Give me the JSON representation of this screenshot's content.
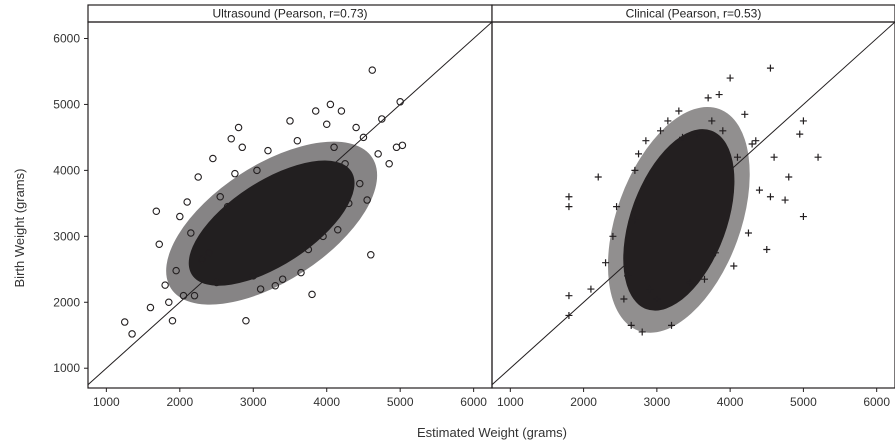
{
  "chart_data": {
    "type": "scatter",
    "xlabel": "Estimated Weight (grams)",
    "ylabel": "Birth Weight (grams)",
    "xlim": [
      750,
      6250
    ],
    "ylim": [
      700,
      6250
    ],
    "xticks": [
      1000,
      2000,
      3000,
      4000,
      5000,
      6000
    ],
    "yticks": [
      1000,
      2000,
      3000,
      4000,
      5000,
      6000
    ],
    "grid": false,
    "reference_line": "y = x",
    "panels": [
      {
        "title": "Ultrasound (Pearson, r=0.73)",
        "marker": "circle",
        "color": "#231f20",
        "points": [
          [
            1250,
            1700
          ],
          [
            1350,
            1520
          ],
          [
            1600,
            1920
          ],
          [
            1680,
            3380
          ],
          [
            1720,
            2880
          ],
          [
            1800,
            2260
          ],
          [
            1850,
            2000
          ],
          [
            1900,
            1720
          ],
          [
            1950,
            2480
          ],
          [
            2000,
            3300
          ],
          [
            2050,
            2100
          ],
          [
            2100,
            3520
          ],
          [
            2150,
            3050
          ],
          [
            2200,
            2100
          ],
          [
            2250,
            3900
          ],
          [
            2300,
            2650
          ],
          [
            2400,
            2750
          ],
          [
            2450,
            4180
          ],
          [
            2500,
            2300
          ],
          [
            2550,
            3600
          ],
          [
            2650,
            3450
          ],
          [
            2700,
            4480
          ],
          [
            2750,
            3950
          ],
          [
            2800,
            4650
          ],
          [
            2850,
            4350
          ],
          [
            2900,
            1720
          ],
          [
            3000,
            2400
          ],
          [
            3050,
            4000
          ],
          [
            3100,
            2200
          ],
          [
            3200,
            4300
          ],
          [
            3300,
            2250
          ],
          [
            3400,
            2350
          ],
          [
            3500,
            4750
          ],
          [
            3600,
            4450
          ],
          [
            3650,
            2450
          ],
          [
            3750,
            2800
          ],
          [
            3800,
            2120
          ],
          [
            3850,
            4900
          ],
          [
            3950,
            3000
          ],
          [
            4000,
            4700
          ],
          [
            4050,
            5000
          ],
          [
            4100,
            4350
          ],
          [
            4150,
            3100
          ],
          [
            4200,
            4900
          ],
          [
            4250,
            4100
          ],
          [
            4300,
            3500
          ],
          [
            4400,
            4650
          ],
          [
            4450,
            3800
          ],
          [
            4500,
            4500
          ],
          [
            4550,
            3550
          ],
          [
            4600,
            2720
          ],
          [
            4620,
            5520
          ],
          [
            4700,
            4250
          ],
          [
            4750,
            4780
          ],
          [
            4850,
            4100
          ],
          [
            4950,
            4350
          ],
          [
            5000,
            5040
          ],
          [
            5030,
            4380
          ]
        ]
      },
      {
        "title": "Clinical (Pearson, r=0.53)",
        "marker": "plus",
        "color": "#231f20",
        "points": [
          [
            1800,
            1800
          ],
          [
            1800,
            2100
          ],
          [
            1800,
            3450
          ],
          [
            1800,
            3600
          ],
          [
            2100,
            2200
          ],
          [
            2200,
            3900
          ],
          [
            2300,
            2600
          ],
          [
            2400,
            3000
          ],
          [
            2450,
            3450
          ],
          [
            2550,
            2050
          ],
          [
            2600,
            2400
          ],
          [
            2650,
            1650
          ],
          [
            2700,
            4000
          ],
          [
            2750,
            4250
          ],
          [
            2800,
            1550
          ],
          [
            2850,
            4450
          ],
          [
            2900,
            2200
          ],
          [
            3000,
            2050
          ],
          [
            3050,
            4600
          ],
          [
            3150,
            4750
          ],
          [
            3200,
            1650
          ],
          [
            3300,
            4900
          ],
          [
            3350,
            4500
          ],
          [
            3450,
            2300
          ],
          [
            3550,
            4550
          ],
          [
            3650,
            2350
          ],
          [
            3700,
            5100
          ],
          [
            3750,
            4750
          ],
          [
            3800,
            2750
          ],
          [
            3850,
            5150
          ],
          [
            3900,
            4600
          ],
          [
            4000,
            5400
          ],
          [
            4050,
            2550
          ],
          [
            4100,
            4200
          ],
          [
            4200,
            4850
          ],
          [
            4250,
            3050
          ],
          [
            4300,
            4400
          ],
          [
            4350,
            4450
          ],
          [
            4400,
            3700
          ],
          [
            4500,
            2800
          ],
          [
            4550,
            5550
          ],
          [
            4600,
            4200
          ],
          [
            4750,
            3550
          ],
          [
            4800,
            3900
          ],
          [
            4950,
            4550
          ],
          [
            5000,
            4750
          ],
          [
            5000,
            3300
          ],
          [
            5200,
            4200
          ],
          [
            4550,
            3600
          ],
          [
            2700,
            3250
          ]
        ]
      }
    ]
  }
}
